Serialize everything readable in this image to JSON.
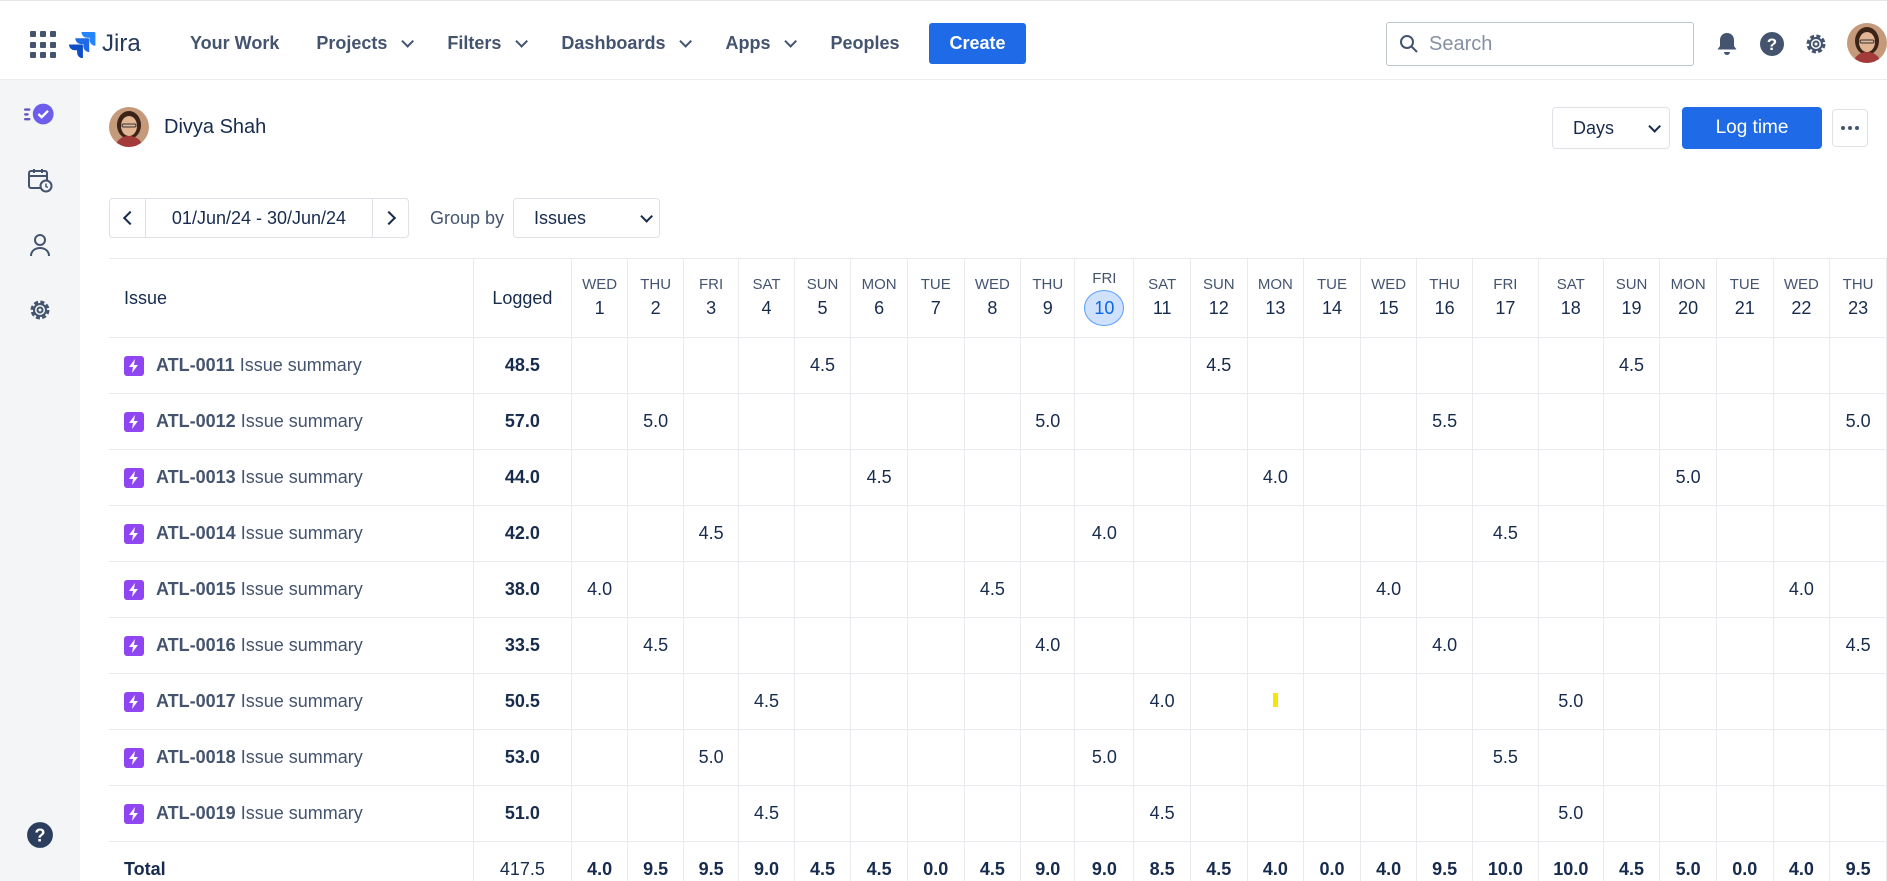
{
  "topbar": {
    "logo_text": "Jira",
    "nav": [
      {
        "label": "Your Work",
        "dropdown": false
      },
      {
        "label": "Projects",
        "dropdown": true
      },
      {
        "label": "Filters",
        "dropdown": true
      },
      {
        "label": "Dashboards",
        "dropdown": true
      },
      {
        "label": "Apps",
        "dropdown": true
      },
      {
        "label": "Peoples",
        "dropdown": false
      }
    ],
    "create_label": "Create",
    "search_placeholder": "Search",
    "icons": [
      "bell-icon",
      "help-icon",
      "settings-icon"
    ]
  },
  "rail": {
    "icons": [
      "timesheet-app-icon",
      "calendar-clock-icon",
      "user-icon",
      "settings-icon",
      "help-icon"
    ]
  },
  "header": {
    "user_name": "Divya Shah",
    "view_select": "Days",
    "log_time_label": "Log time"
  },
  "range": {
    "text": "01/Jun/24 - 30/Jun/24",
    "group_by_label": "Group by",
    "group_by_value": "Issues"
  },
  "table": {
    "col_issue": "Issue",
    "col_logged": "Logged",
    "days": [
      {
        "name": "WED",
        "num": "1"
      },
      {
        "name": "THU",
        "num": "2"
      },
      {
        "name": "FRI",
        "num": "3"
      },
      {
        "name": "SAT",
        "num": "4"
      },
      {
        "name": "SUN",
        "num": "5"
      },
      {
        "name": "MON",
        "num": "6"
      },
      {
        "name": "TUE",
        "num": "7"
      },
      {
        "name": "WED",
        "num": "8"
      },
      {
        "name": "THU",
        "num": "9"
      },
      {
        "name": "FRI",
        "num": "10",
        "today": true
      },
      {
        "name": "SAT",
        "num": "11"
      },
      {
        "name": "SUN",
        "num": "12"
      },
      {
        "name": "MON",
        "num": "13"
      },
      {
        "name": "TUE",
        "num": "14"
      },
      {
        "name": "WED",
        "num": "15"
      },
      {
        "name": "THU",
        "num": "16"
      },
      {
        "name": "FRI",
        "num": "17"
      },
      {
        "name": "SAT",
        "num": "18"
      },
      {
        "name": "SUN",
        "num": "19"
      },
      {
        "name": "MON",
        "num": "20"
      },
      {
        "name": "TUE",
        "num": "21"
      },
      {
        "name": "WED",
        "num": "22"
      },
      {
        "name": "THU",
        "num": "23"
      }
    ],
    "rows": [
      {
        "key": "ATL-0011",
        "summary": "Issue summary",
        "logged": "48.5",
        "cells": [
          "",
          "",
          "",
          "",
          "4.5",
          "",
          "",
          "",
          "",
          "",
          "",
          "4.5",
          "",
          "",
          "",
          "",
          "",
          "",
          "4.5",
          "",
          "",
          "",
          ""
        ]
      },
      {
        "key": "ATL-0012",
        "summary": "Issue summary",
        "logged": "57.0",
        "cells": [
          "",
          "5.0",
          "",
          "",
          "",
          "",
          "",
          "",
          "5.0",
          "",
          "",
          "",
          "",
          "",
          "",
          "5.5",
          "",
          "",
          "",
          "",
          "",
          "",
          "5.0"
        ]
      },
      {
        "key": "ATL-0013",
        "summary": "Issue summary",
        "logged": "44.0",
        "cells": [
          "",
          "",
          "",
          "",
          "",
          "4.5",
          "",
          "",
          "",
          "",
          "",
          "",
          "4.0",
          "",
          "",
          "",
          "",
          "",
          "",
          "5.0",
          "",
          "",
          ""
        ]
      },
      {
        "key": "ATL-0014",
        "summary": "Issue summary",
        "logged": "42.0",
        "cells": [
          "",
          "",
          "4.5",
          "",
          "",
          "",
          "",
          "",
          "",
          "4.0",
          "",
          "",
          "",
          "",
          "",
          "",
          "4.5",
          "",
          "",
          "",
          "",
          "",
          ""
        ]
      },
      {
        "key": "ATL-0015",
        "summary": "Issue summary",
        "logged": "38.0",
        "cells": [
          "4.0",
          "",
          "",
          "",
          "",
          "",
          "",
          "4.5",
          "",
          "",
          "",
          "",
          "",
          "",
          "4.0",
          "",
          "",
          "",
          "",
          "",
          "",
          "4.0",
          ""
        ]
      },
      {
        "key": "ATL-0016",
        "summary": "Issue summary",
        "logged": "33.5",
        "cells": [
          "",
          "4.5",
          "",
          "",
          "",
          "",
          "",
          "",
          "4.0",
          "",
          "",
          "",
          "",
          "",
          "",
          "4.0",
          "",
          "",
          "",
          "",
          "",
          "",
          "4.5"
        ]
      },
      {
        "key": "ATL-0017",
        "summary": "Issue summary",
        "logged": "50.5",
        "cells": [
          "",
          "",
          "",
          "4.5",
          "",
          "",
          "",
          "",
          "",
          "",
          "4.0",
          "",
          "",
          "",
          "",
          "",
          "",
          "5.0",
          "",
          "",
          "",
          "",
          ""
        ],
        "marker_day": 13
      },
      {
        "key": "ATL-0018",
        "summary": "Issue summary",
        "logged": "53.0",
        "cells": [
          "",
          "",
          "5.0",
          "",
          "",
          "",
          "",
          "",
          "",
          "5.0",
          "",
          "",
          "",
          "",
          "",
          "",
          "5.5",
          "",
          "",
          "",
          "",
          "",
          ""
        ]
      },
      {
        "key": "ATL-0019",
        "summary": "Issue summary",
        "logged": "51.0",
        "cells": [
          "",
          "",
          "",
          "4.5",
          "",
          "",
          "",
          "",
          "",
          "",
          "4.5",
          "",
          "",
          "",
          "",
          "",
          "",
          "5.0",
          "",
          "",
          "",
          "",
          ""
        ]
      }
    ],
    "total": {
      "label": "Total",
      "logged": "417.5",
      "cells": [
        "4.0",
        "9.5",
        "9.5",
        "9.0",
        "4.5",
        "4.5",
        "0.0",
        "4.5",
        "9.0",
        "9.0",
        "8.5",
        "4.5",
        "4.0",
        "0.0",
        "4.0",
        "9.5",
        "10.0",
        "10.0",
        "4.5",
        "5.0",
        "0.0",
        "4.0",
        "9.5"
      ]
    }
  },
  "colors": {
    "primary": "#1f6ae6",
    "issue_icon": "#8f46f2",
    "today_highlight": "#cfe1fd",
    "marker": "#f5e60a"
  }
}
